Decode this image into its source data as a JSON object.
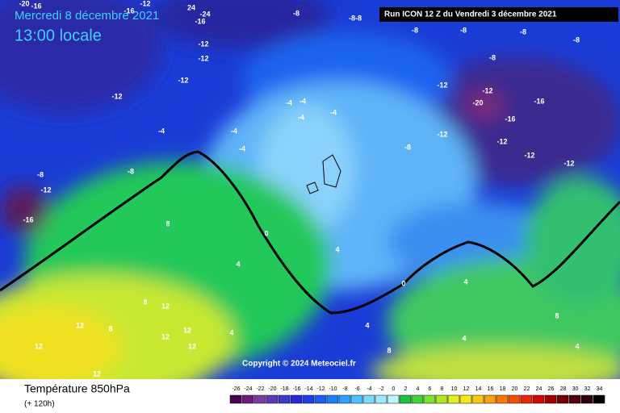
{
  "header": {
    "date": "Mercredi 8 décembre 2021",
    "time": "13:00 locale",
    "run": "Run ICON 12 Z du Vendredi 3 décembre 2021",
    "copyright": "Copyright © 2024 Meteociel.fr"
  },
  "footer": {
    "title": "Température 850hPa",
    "subtitle": "(+ 120h)"
  },
  "legend": {
    "values": [
      -26,
      -24,
      -22,
      -20,
      -18,
      -16,
      -14,
      -12,
      -10,
      -8,
      -6,
      -4,
      -2,
      0,
      2,
      4,
      6,
      8,
      10,
      12,
      14,
      16,
      18,
      20,
      22,
      24,
      26,
      28,
      30,
      32,
      34
    ]
  },
  "map": {
    "labels": [
      "-20",
      "-16",
      "-12",
      "-16",
      "24",
      "-24",
      "-16",
      "-8",
      "-8-8",
      "-8",
      "-8",
      "-8",
      "-8",
      "-12",
      "-12",
      "-8",
      "-12",
      "-12",
      "-12",
      "-12",
      "-20",
      "-16",
      "-4",
      "-4",
      "-4",
      "-4",
      "-16",
      "-4",
      "-4",
      "-12",
      "-12",
      "-4",
      "-8",
      "-12",
      "-8",
      "-12",
      "-8",
      "0",
      "8",
      "4",
      "4",
      "0",
      "4",
      "8",
      "12",
      "12",
      "8",
      "12",
      "12",
      "12",
      "4",
      "12",
      "4",
      "8",
      "4",
      "8",
      "4",
      "12",
      "-16",
      "-12"
    ]
  }
}
